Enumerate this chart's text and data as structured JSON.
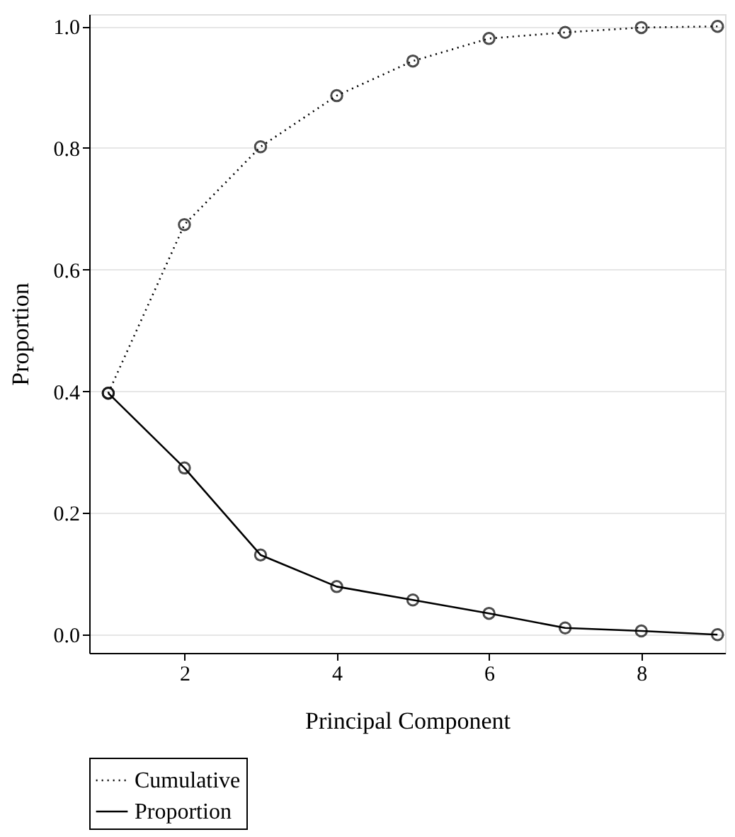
{
  "chart_data": {
    "type": "line",
    "xlabel": "Principal Component",
    "ylabel": "Proportion",
    "x": [
      1,
      2,
      3,
      4,
      5,
      6,
      7,
      8,
      9
    ],
    "series": [
      {
        "name": "Cumulative",
        "color": "#000000",
        "line_style": "dotted",
        "values": [
          0.397,
          0.674,
          0.802,
          0.886,
          0.943,
          0.98,
          0.99,
          0.998,
          1.0
        ]
      },
      {
        "name": "Proportion",
        "color": "#000000",
        "line_style": "solid",
        "values": [
          0.397,
          0.274,
          0.131,
          0.079,
          0.057,
          0.035,
          0.011,
          0.006,
          0.0
        ]
      }
    ],
    "xlim": [
      0.75,
      9.1
    ],
    "xticks": [
      2,
      4,
      6,
      8
    ],
    "ylim": [
      -0.03,
      1.02
    ],
    "yticks": [
      {
        "value": 0,
        "label": "0.0"
      },
      0.2,
      0.4,
      0.6,
      0.8,
      {
        "value": 1,
        "label": "1.0"
      }
    ],
    "grid": "y",
    "legend": "bottom",
    "marker": "circle"
  }
}
